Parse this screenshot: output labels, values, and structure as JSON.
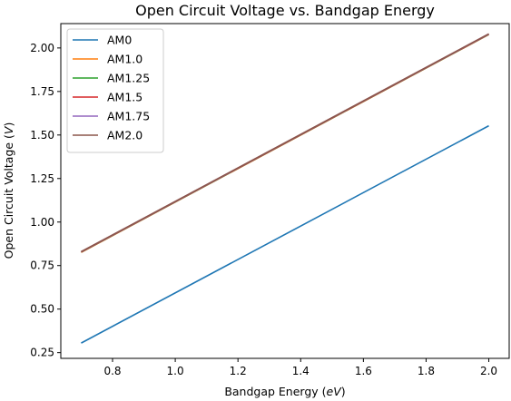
{
  "chart_data": {
    "type": "line",
    "title": "Open Circuit Voltage vs. Bandgap Energy",
    "xlabel": {
      "prefix": "Bandgap Energy (",
      "unit": "eV",
      "suffix": ")"
    },
    "ylabel": {
      "prefix": "Open Circuit Voltage (",
      "unit": "V",
      "suffix": ")"
    },
    "xlim": [
      0.635,
      2.065
    ],
    "ylim": [
      0.217,
      2.14
    ],
    "xticks": [
      0.8,
      1.0,
      1.2,
      1.4,
      1.6,
      1.8,
      2.0
    ],
    "xtick_labels": [
      "0.8",
      "1.0",
      "1.2",
      "1.4",
      "1.6",
      "1.8",
      "2.0"
    ],
    "yticks": [
      0.25,
      0.5,
      0.75,
      1.0,
      1.25,
      1.5,
      1.75,
      2.0
    ],
    "ytick_labels": [
      "0.25",
      "0.50",
      "0.75",
      "1.00",
      "1.25",
      "1.50",
      "1.75",
      "2.00"
    ],
    "grid": false,
    "legend_position": "top-left",
    "series": [
      {
        "name": "AM0",
        "color": "#1f77b4",
        "x": [
          0.7,
          2.0
        ],
        "y": [
          0.305,
          1.553
        ]
      },
      {
        "name": "AM1.0",
        "color": "#ff7f0e",
        "x": [
          0.7,
          2.0
        ],
        "y": [
          0.826,
          2.077
        ]
      },
      {
        "name": "AM1.25",
        "color": "#2ca02c",
        "x": [
          0.7,
          2.0
        ],
        "y": [
          0.827,
          2.078
        ]
      },
      {
        "name": "AM1.5",
        "color": "#d62728",
        "x": [
          0.7,
          2.0
        ],
        "y": [
          0.828,
          2.079
        ]
      },
      {
        "name": "AM1.75",
        "color": "#9467bd",
        "x": [
          0.7,
          2.0
        ],
        "y": [
          0.829,
          2.08
        ]
      },
      {
        "name": "AM2.0",
        "color": "#8c564b",
        "x": [
          0.7,
          2.0
        ],
        "y": [
          0.83,
          2.081
        ]
      }
    ]
  }
}
